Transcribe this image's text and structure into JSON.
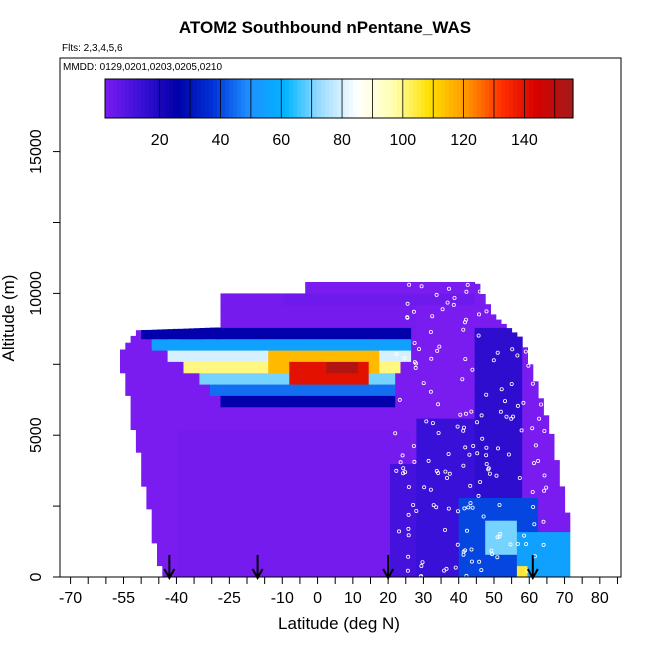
{
  "title": "ATOM2 Southbound nPentane_WAS",
  "flights_text": "Flts: 2,3,4,5,6",
  "dates_text": "MMDD: 0129,0201,0203,0205,0210",
  "chart_data": {
    "type": "heatmap",
    "title": "ATOM2 Southbound nPentane_WAS",
    "xlabel": "Latitude (deg N)",
    "ylabel": "Altitude (m)",
    "xlim": [
      -73,
      86
    ],
    "ylim": [
      0,
      18300
    ],
    "x_ticks": [
      -70,
      -55,
      -40,
      -25,
      -10,
      0,
      10,
      20,
      30,
      40,
      50,
      60,
      70,
      80
    ],
    "x_minor_ticks": [
      -65,
      -60,
      -50,
      -45,
      -35,
      -30,
      -20,
      -15,
      -5,
      5,
      15,
      25,
      35,
      45,
      55,
      65,
      75,
      85
    ],
    "y_ticks": [
      0,
      5000,
      10000,
      15000
    ],
    "y_minor_ticks": [
      2500,
      7500,
      12500
    ],
    "colorbar": {
      "min": 2,
      "max": 156,
      "tick_values": [
        20,
        40,
        60,
        80,
        100,
        120,
        140
      ],
      "tick_labels": [
        "20",
        "40",
        "60",
        "80",
        "100",
        "120",
        "140"
      ],
      "colors": [
        "#7a1cf0",
        "#3a10d8",
        "#0000a8",
        "#0033d8",
        "#1e90ff",
        "#00b4ff",
        "#9fdcff",
        "#ffffff",
        "#ffffb0",
        "#ffe000",
        "#ff9a00",
        "#ff3000",
        "#d40000",
        "#a31c1c"
      ]
    },
    "background_value": 2,
    "regions": [
      {
        "lat": [
          -56,
          -39
        ],
        "alt": [
          0,
          7900
        ],
        "value": 2
      },
      {
        "lat": [
          -39,
          26
        ],
        "alt": [
          0,
          5200
        ],
        "value": 3
      },
      {
        "lat": [
          -28,
          28
        ],
        "alt": [
          8200,
          10000
        ],
        "value": 3
      },
      {
        "lat": [
          -10,
          45
        ],
        "alt": [
          9700,
          10100
        ],
        "value": 4
      },
      {
        "lat": [
          -50,
          26
        ],
        "alt": [
          8400,
          8800
        ],
        "value": 25
      },
      {
        "lat": [
          -47,
          26
        ],
        "alt": [
          8000,
          8400
        ],
        "value": 55
      },
      {
        "lat": [
          -43,
          26
        ],
        "alt": [
          7600,
          8000
        ],
        "value": 80
      },
      {
        "lat": [
          -38,
          24
        ],
        "alt": [
          7200,
          7600
        ],
        "value": 100
      },
      {
        "lat": [
          -34,
          22
        ],
        "alt": [
          6800,
          7200
        ],
        "value": 70
      },
      {
        "lat": [
          -31,
          22
        ],
        "alt": [
          6400,
          6800
        ],
        "value": 45
      },
      {
        "lat": [
          -28,
          22
        ],
        "alt": [
          6000,
          6400
        ],
        "value": 25
      },
      {
        "lat": [
          -14,
          18
        ],
        "alt": [
          7400,
          8000
        ],
        "value": 115
      },
      {
        "lat": [
          -8,
          15
        ],
        "alt": [
          7000,
          7600
        ],
        "value": 140
      },
      {
        "lat": [
          3,
          12
        ],
        "alt": [
          7100,
          7500
        ],
        "value": 152
      },
      {
        "lat": [
          20,
          28
        ],
        "alt": [
          0,
          4200
        ],
        "value": 12
      },
      {
        "lat": [
          28,
          45
        ],
        "alt": [
          0,
          5800
        ],
        "value": 14
      },
      {
        "lat": [
          45,
          58
        ],
        "alt": [
          3000,
          9000
        ],
        "value": 16
      },
      {
        "lat": [
          40,
          62
        ],
        "alt": [
          0,
          3000
        ],
        "value": 40
      },
      {
        "lat": [
          47,
          57
        ],
        "alt": [
          700,
          2000
        ],
        "value": 70
      },
      {
        "lat": [
          56,
          72
        ],
        "alt": [
          0,
          1500
        ],
        "value": 55
      },
      {
        "lat": [
          56,
          60
        ],
        "alt": [
          200,
          600
        ],
        "value": 105
      }
    ],
    "flight_markers_lat": [
      -42,
      -17,
      20,
      61
    ]
  }
}
